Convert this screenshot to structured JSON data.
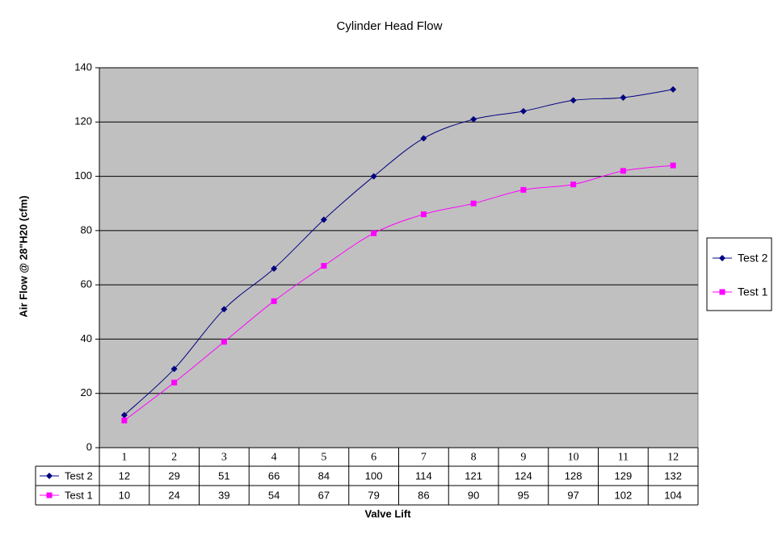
{
  "chart_data": {
    "type": "line",
    "title": "Cylinder Head Flow",
    "x_label": "Valve Lift",
    "y_label": "Air Flow @ 28\"H20 (cfm)",
    "categories": [
      "1",
      "2",
      "3",
      "4",
      "5",
      "6",
      "7",
      "8",
      "9",
      "10",
      "11",
      "12"
    ],
    "series": [
      {
        "name": "Test 2",
        "color": "#000080",
        "marker": "diamond",
        "values": [
          12,
          29,
          51,
          66,
          84,
          100,
          114,
          121,
          124,
          128,
          129,
          132
        ]
      },
      {
        "name": "Test 1",
        "color": "#ff00ff",
        "marker": "square",
        "values": [
          10,
          24,
          39,
          54,
          67,
          79,
          86,
          90,
          95,
          97,
          102,
          104
        ]
      }
    ],
    "ylim": [
      0,
      140
    ],
    "yticks": [
      0,
      20,
      40,
      60,
      80,
      100,
      120,
      140
    ],
    "grid": true,
    "legend": "right",
    "smooth": true
  }
}
